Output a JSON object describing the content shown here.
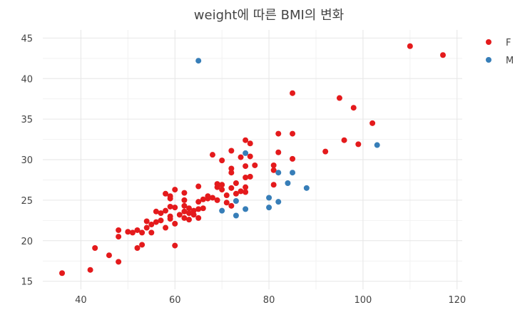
{
  "chart_data": {
    "type": "scatter",
    "title": "weight에 따른 BMI의 변화",
    "xlabel": "",
    "ylabel": "",
    "xlim": [
      31.9,
      121.1
    ],
    "ylim": [
      14.0,
      46.0
    ],
    "xticks": [
      40,
      60,
      80,
      100,
      120
    ],
    "yticks": [
      15,
      20,
      25,
      30,
      35,
      40,
      45
    ],
    "xtick_labels": [
      "40",
      "60",
      "80",
      "100",
      "120"
    ],
    "ytick_labels": [
      "15",
      "20",
      "25",
      "30",
      "35",
      "40",
      "45"
    ],
    "grid": true,
    "legend_position": "top-right",
    "series": [
      {
        "name": "F",
        "color": "#e41a1c",
        "points": [
          [
            36,
            16.0
          ],
          [
            42,
            16.4
          ],
          [
            43,
            19.1
          ],
          [
            46,
            18.2
          ],
          [
            48,
            17.4
          ],
          [
            48,
            20.5
          ],
          [
            48,
            21.3
          ],
          [
            50,
            21.1
          ],
          [
            51,
            21.0
          ],
          [
            52,
            21.3
          ],
          [
            52,
            19.1
          ],
          [
            53,
            19.5
          ],
          [
            53,
            21.0
          ],
          [
            54,
            21.6
          ],
          [
            54,
            22.4
          ],
          [
            55,
            21.0
          ],
          [
            55,
            22.0
          ],
          [
            56,
            22.3
          ],
          [
            56,
            23.6
          ],
          [
            57,
            22.5
          ],
          [
            57,
            23.4
          ],
          [
            58,
            21.6
          ],
          [
            58,
            23.7
          ],
          [
            58,
            25.8
          ],
          [
            59,
            25.5
          ],
          [
            59,
            25.2
          ],
          [
            59,
            24.2
          ],
          [
            59,
            22.7
          ],
          [
            59,
            23.0
          ],
          [
            60,
            26.3
          ],
          [
            60,
            24.1
          ],
          [
            60,
            22.1
          ],
          [
            60,
            19.4
          ],
          [
            61,
            23.2
          ],
          [
            62,
            25.9
          ],
          [
            62,
            25.0
          ],
          [
            62,
            24.3
          ],
          [
            62,
            23.6
          ],
          [
            62,
            22.8
          ],
          [
            63,
            23.4
          ],
          [
            63,
            22.6
          ],
          [
            63,
            24.0
          ],
          [
            64,
            23.7
          ],
          [
            64,
            23.2
          ],
          [
            65,
            26.7
          ],
          [
            65,
            24.8
          ],
          [
            65,
            23.9
          ],
          [
            65,
            22.8
          ],
          [
            66,
            24.0
          ],
          [
            66,
            25.1
          ],
          [
            67,
            25.5
          ],
          [
            67,
            25.2
          ],
          [
            68,
            25.3
          ],
          [
            68,
            30.6
          ],
          [
            69,
            27.0
          ],
          [
            69,
            26.6
          ],
          [
            69,
            25.0
          ],
          [
            70,
            29.9
          ],
          [
            70,
            26.9
          ],
          [
            70,
            26.3
          ],
          [
            71,
            25.6
          ],
          [
            71,
            24.7
          ],
          [
            72,
            31.1
          ],
          [
            72,
            28.9
          ],
          [
            72,
            28.4
          ],
          [
            72,
            26.5
          ],
          [
            72,
            24.3
          ],
          [
            73,
            27.1
          ],
          [
            73,
            25.8
          ],
          [
            74,
            30.3
          ],
          [
            74,
            26.1
          ],
          [
            75,
            32.4
          ],
          [
            75,
            29.2
          ],
          [
            75,
            27.8
          ],
          [
            75,
            26.6
          ],
          [
            75,
            26.0
          ],
          [
            76,
            32.0
          ],
          [
            76,
            30.4
          ],
          [
            76,
            27.9
          ],
          [
            77,
            29.3
          ],
          [
            81,
            29.3
          ],
          [
            81,
            28.7
          ],
          [
            81,
            26.9
          ],
          [
            82,
            33.2
          ],
          [
            82,
            30.9
          ],
          [
            85,
            38.2
          ],
          [
            85,
            33.2
          ],
          [
            85,
            30.1
          ],
          [
            92,
            31.0
          ],
          [
            95,
            37.6
          ],
          [
            96,
            32.4
          ],
          [
            98,
            36.4
          ],
          [
            99,
            31.9
          ],
          [
            102,
            34.5
          ],
          [
            110,
            44.0
          ],
          [
            117,
            42.9
          ]
        ]
      },
      {
        "name": "M",
        "color": "#377eb8",
        "points": [
          [
            65,
            42.2
          ],
          [
            70,
            23.7
          ],
          [
            73,
            23.1
          ],
          [
            73,
            24.9
          ],
          [
            75,
            30.8
          ],
          [
            75,
            23.9
          ],
          [
            80,
            25.3
          ],
          [
            80,
            24.1
          ],
          [
            82,
            28.4
          ],
          [
            82,
            24.8
          ],
          [
            84,
            27.1
          ],
          [
            85,
            28.4
          ],
          [
            88,
            26.5
          ],
          [
            103,
            31.8
          ]
        ]
      }
    ]
  }
}
